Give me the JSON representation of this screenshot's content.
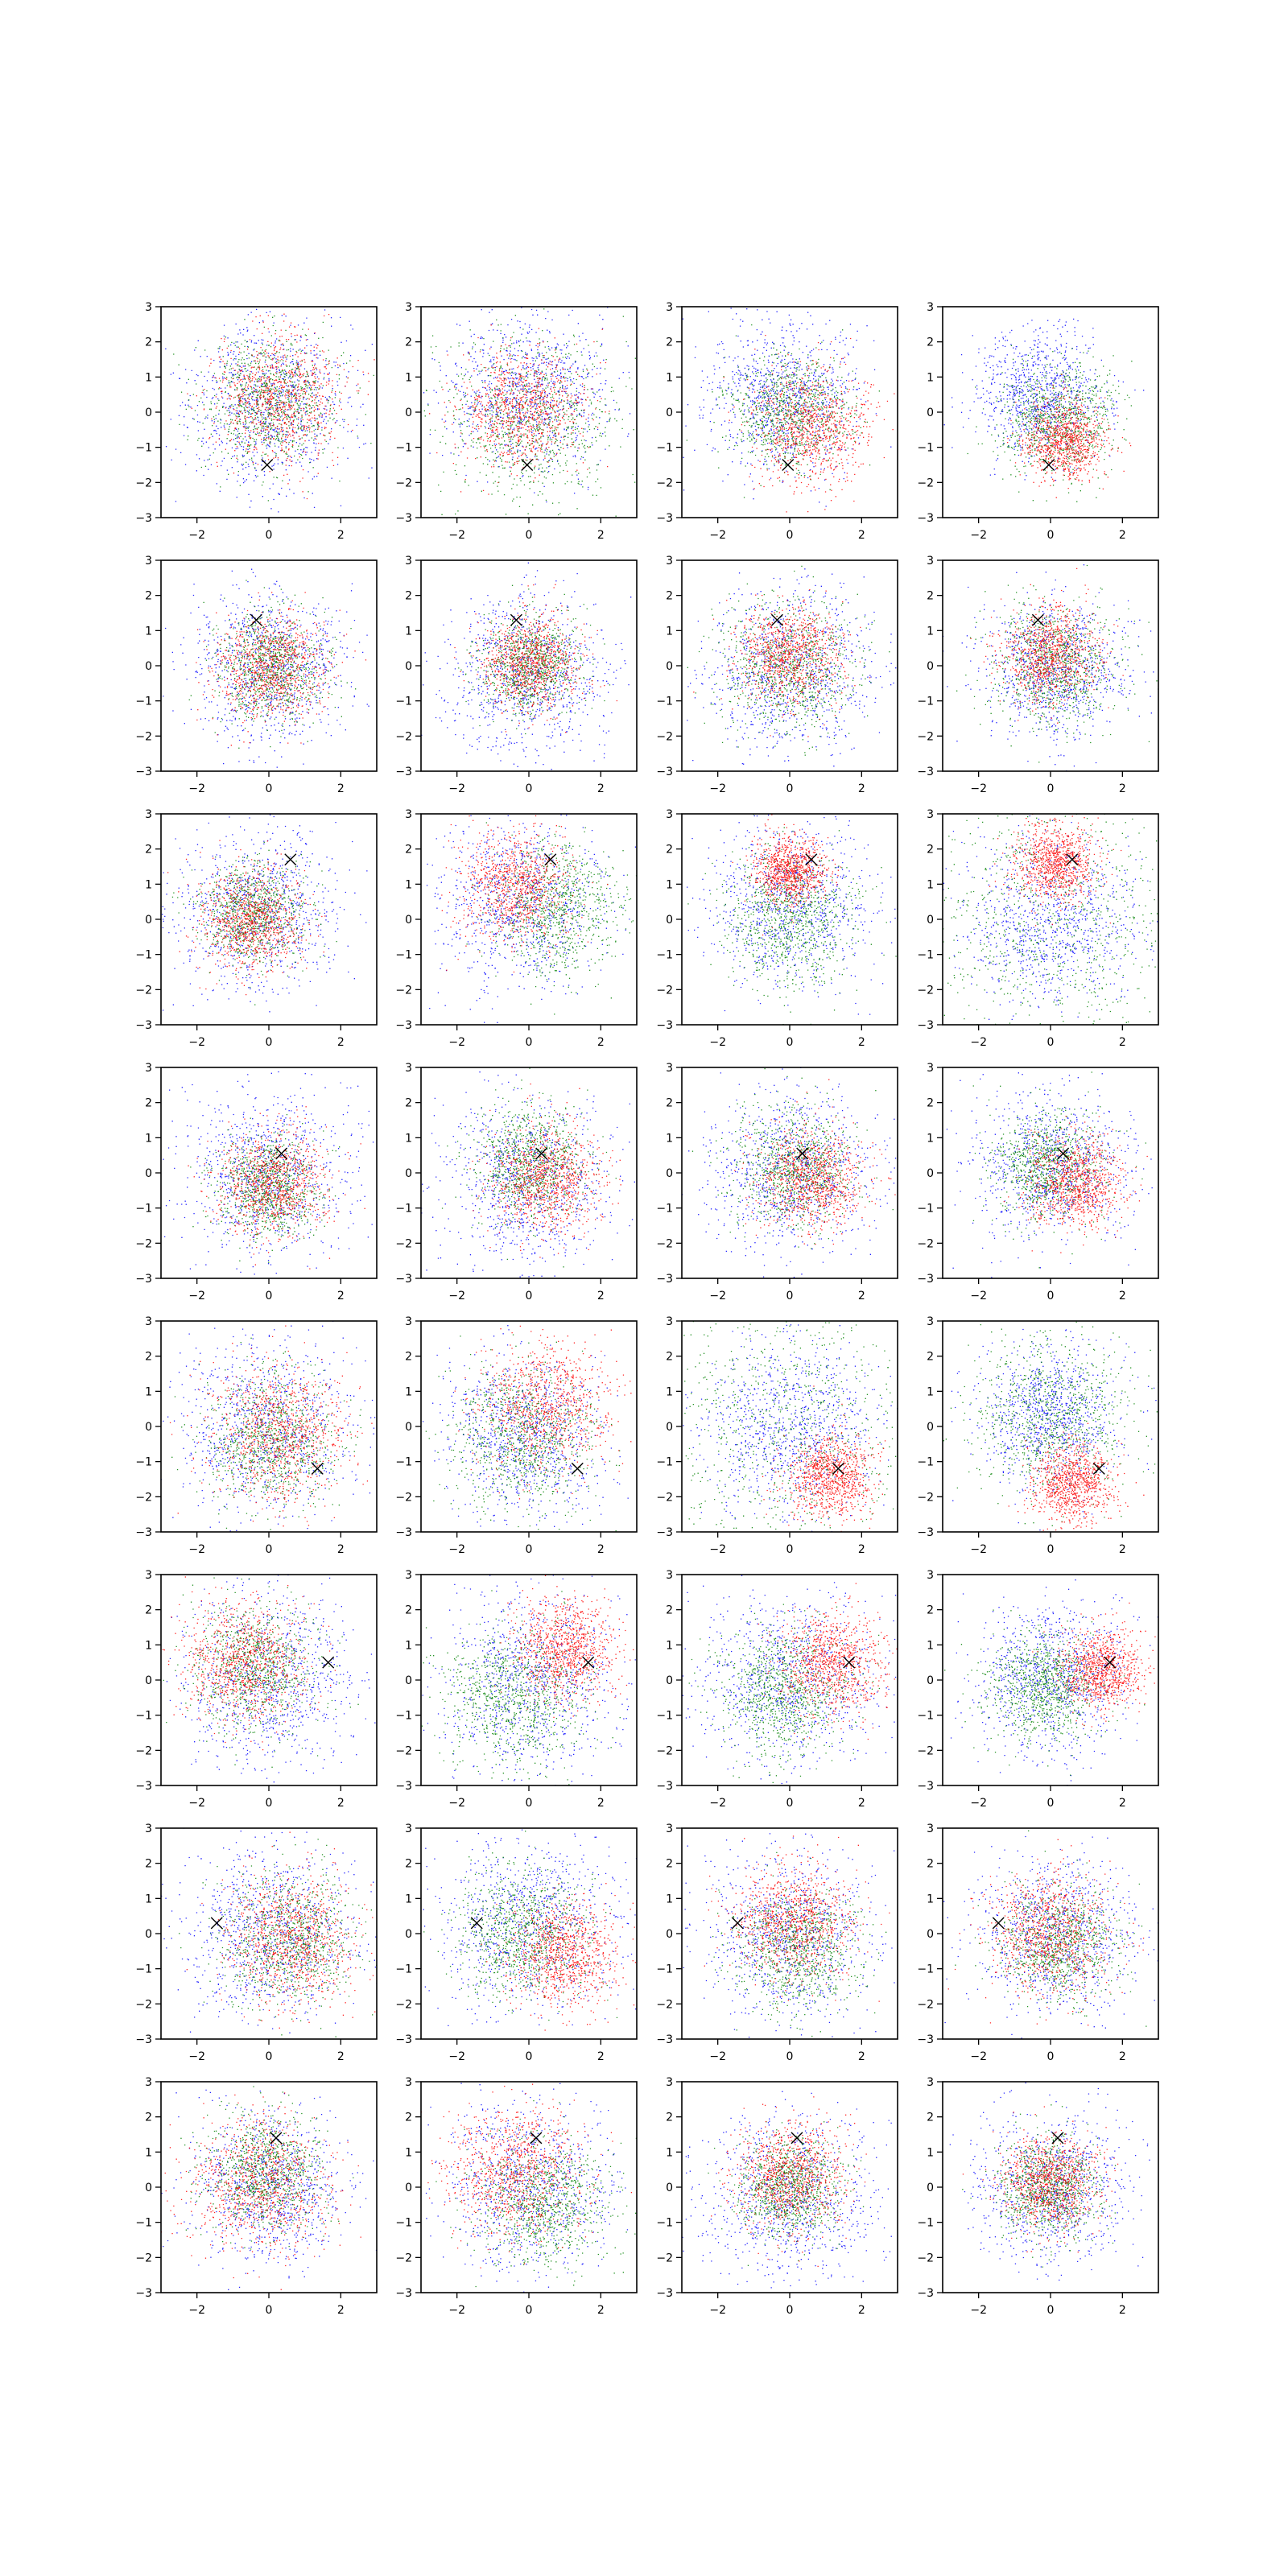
{
  "figure": {
    "rows": 8,
    "cols": 4,
    "marker_symbol": "x",
    "marker_color": "#000000",
    "color_order": [
      "#0000ff",
      "#008000",
      "#ff0000"
    ]
  },
  "chart_data": {
    "type": "scatter",
    "xlim": [
      -3,
      3
    ],
    "ylim": [
      -3,
      3
    ],
    "xticks": [
      -2,
      0,
      2
    ],
    "yticks": [
      -3,
      -2,
      -1,
      0,
      1,
      2,
      3
    ],
    "xtick_labels": [
      "−2",
      "0",
      "2"
    ],
    "ytick_labels": [
      "−3",
      "−2",
      "−1",
      "0",
      "1",
      "2",
      "3"
    ],
    "grid": false,
    "legend": "none",
    "colors": [
      "#0000ff",
      "#008000",
      "#ff0000"
    ],
    "rows": [
      {
        "marker": [
          -0.05,
          -1.5
        ],
        "panels": [
          [
            [
              0.0,
              0.2,
              1.2
            ],
            [
              0.0,
              0.3,
              0.9
            ],
            [
              0.3,
              0.4,
              0.9
            ]
          ],
          [
            [
              0.0,
              0.6,
              1.15
            ],
            [
              0.0,
              -0.2,
              1.2
            ],
            [
              -0.2,
              0.1,
              0.85
            ]
          ],
          [
            [
              -0.2,
              0.4,
              1.05
            ],
            [
              0.0,
              0.0,
              0.8
            ],
            [
              0.6,
              -0.4,
              0.8
            ]
          ],
          [
            [
              -0.3,
              0.5,
              0.9
            ],
            [
              0.2,
              -0.2,
              0.8
            ],
            [
              0.4,
              -0.8,
              0.55
            ]
          ]
        ]
      },
      {
        "marker": [
          -0.35,
          1.3
        ],
        "panels": [
          [
            [
              0.0,
              0.0,
              1.1
            ],
            [
              0.0,
              0.0,
              0.75
            ],
            [
              0.0,
              0.0,
              0.75
            ]
          ],
          [
            [
              0.0,
              -0.3,
              1.1
            ],
            [
              0.0,
              0.0,
              0.7
            ],
            [
              0.0,
              0.1,
              0.65
            ]
          ],
          [
            [
              0.0,
              -0.2,
              1.2
            ],
            [
              0.0,
              0.0,
              0.95
            ],
            [
              0.0,
              0.3,
              0.7
            ]
          ],
          [
            [
              0.1,
              -0.1,
              1.0
            ],
            [
              0.1,
              0.0,
              0.85
            ],
            [
              0.0,
              0.3,
              0.65
            ]
          ]
        ]
      },
      {
        "marker": [
          0.6,
          1.7
        ],
        "panels": [
          [
            [
              -0.3,
              0.3,
              1.2
            ],
            [
              -0.4,
              0.2,
              0.7
            ],
            [
              -0.5,
              0.0,
              0.7
            ]
          ],
          [
            [
              -0.3,
              0.4,
              1.2
            ],
            [
              0.7,
              0.3,
              0.9
            ],
            [
              -0.4,
              0.9,
              0.75
            ]
          ],
          [
            [
              0.0,
              0.3,
              1.15
            ],
            [
              0.0,
              0.0,
              0.9
            ],
            [
              0.0,
              1.4,
              0.5
            ]
          ],
          [
            [
              0.0,
              -0.1,
              1.2
            ],
            [
              0.0,
              0.0,
              1.9
            ],
            [
              0.1,
              1.6,
              0.55
            ]
          ]
        ]
      },
      {
        "marker": [
          0.35,
          0.55
        ],
        "panels": [
          [
            [
              0.0,
              0.0,
              1.2
            ],
            [
              0.0,
              -0.4,
              0.7
            ],
            [
              0.1,
              -0.3,
              0.75
            ]
          ],
          [
            [
              0.0,
              -0.2,
              1.2
            ],
            [
              0.0,
              0.3,
              0.75
            ],
            [
              0.5,
              -0.2,
              0.75
            ]
          ],
          [
            [
              0.0,
              0.0,
              1.2
            ],
            [
              0.1,
              0.1,
              0.85
            ],
            [
              0.6,
              -0.2,
              0.7
            ]
          ],
          [
            [
              0.0,
              0.2,
              1.1
            ],
            [
              -0.1,
              0.2,
              0.75
            ],
            [
              0.7,
              -0.3,
              0.65
            ]
          ]
        ]
      },
      {
        "marker": [
          1.35,
          -1.2
        ],
        "panels": [
          [
            [
              0.0,
              0.0,
              1.25
            ],
            [
              0.0,
              -0.4,
              0.9
            ],
            [
              0.2,
              -0.2,
              0.95
            ]
          ],
          [
            [
              -0.2,
              -0.3,
              1.15
            ],
            [
              -0.2,
              -0.3,
              1.0
            ],
            [
              0.5,
              0.6,
              0.9
            ]
          ],
          [
            [
              0.0,
              0.0,
              1.2
            ],
            [
              0.0,
              0.0,
              1.95
            ],
            [
              1.1,
              -1.4,
              0.6
            ]
          ],
          [
            [
              0.0,
              0.3,
              0.95
            ],
            [
              0.0,
              0.3,
              1.1
            ],
            [
              0.6,
              -1.6,
              0.55
            ]
          ]
        ]
      },
      {
        "marker": [
          1.65,
          0.5
        ],
        "panels": [
          [
            [
              0.0,
              0.0,
              1.25
            ],
            [
              -0.4,
              0.4,
              0.85
            ],
            [
              -0.7,
              0.5,
              0.85
            ]
          ],
          [
            [
              0.0,
              0.0,
              1.3
            ],
            [
              -0.4,
              -0.5,
              1.0
            ],
            [
              1.0,
              0.9,
              0.7
            ]
          ],
          [
            [
              0.0,
              0.0,
              1.25
            ],
            [
              -0.2,
              -0.3,
              0.9
            ],
            [
              1.2,
              0.5,
              0.7
            ]
          ],
          [
            [
              0.0,
              0.0,
              1.05
            ],
            [
              -0.2,
              -0.2,
              0.75
            ],
            [
              1.4,
              0.3,
              0.55
            ]
          ]
        ]
      },
      {
        "marker": [
          -1.45,
          0.3
        ],
        "panels": [
          [
            [
              0.0,
              0.0,
              1.2
            ],
            [
              0.5,
              -0.2,
              0.95
            ],
            [
              0.6,
              -0.2,
              0.9
            ]
          ],
          [
            [
              0.0,
              0.3,
              1.2
            ],
            [
              -0.2,
              0.0,
              0.9
            ],
            [
              1.0,
              -0.6,
              0.75
            ]
          ],
          [
            [
              0.0,
              0.0,
              1.2
            ],
            [
              0.2,
              -0.4,
              0.85
            ],
            [
              0.1,
              0.3,
              0.8
            ]
          ],
          [
            [
              0.2,
              0.0,
              1.1
            ],
            [
              0.2,
              -0.3,
              0.8
            ],
            [
              0.0,
              0.0,
              0.85
            ]
          ]
        ]
      },
      {
        "marker": [
          0.2,
          1.4
        ],
        "panels": [
          [
            [
              0.0,
              0.0,
              1.1
            ],
            [
              -0.1,
              0.4,
              0.8
            ],
            [
              -0.2,
              0.1,
              0.95
            ]
          ],
          [
            [
              0.0,
              0.0,
              1.25
            ],
            [
              0.3,
              -0.4,
              0.9
            ],
            [
              -0.4,
              0.4,
              0.95
            ]
          ],
          [
            [
              0.0,
              -0.2,
              1.2
            ],
            [
              0.0,
              0.0,
              0.7
            ],
            [
              0.0,
              0.3,
              0.75
            ]
          ],
          [
            [
              0.0,
              0.0,
              1.1
            ],
            [
              -0.1,
              0.0,
              0.7
            ],
            [
              0.0,
              0.1,
              0.65
            ]
          ]
        ]
      }
    ]
  }
}
